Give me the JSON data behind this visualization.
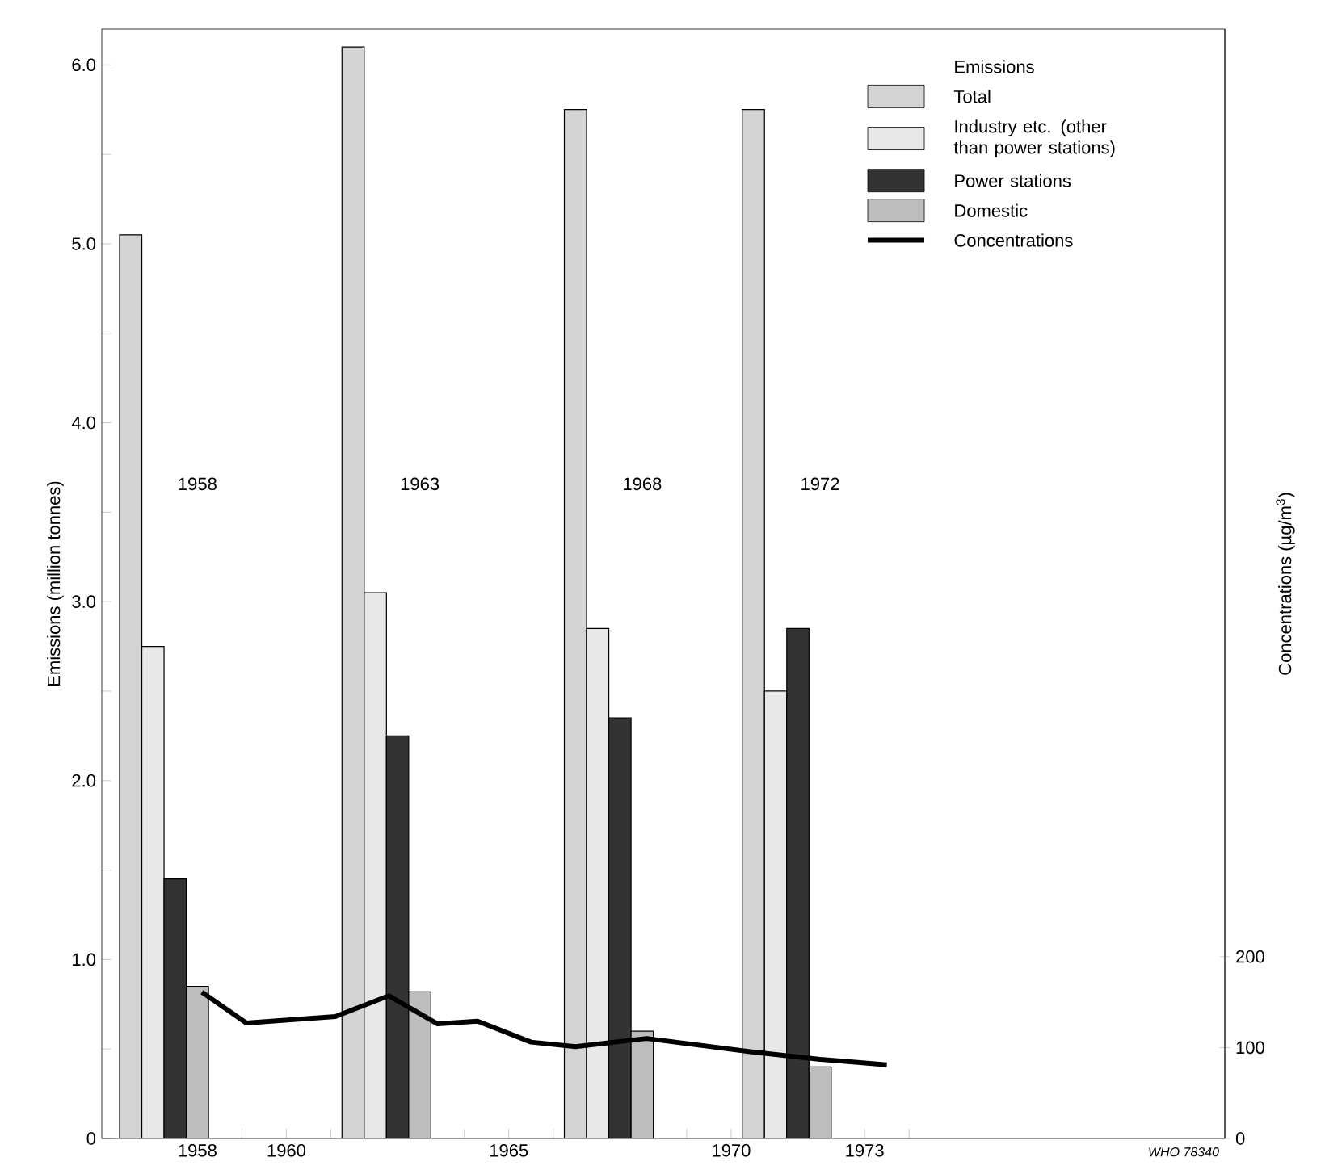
{
  "chart_data": {
    "type": "bar",
    "legend_title": "Emissions",
    "ylabel": "Emissions (million tonnes)",
    "y2label": "Concentrations (µg/m$^{3}$)",
    "x": [
      1958,
      1963,
      1968,
      1972
    ],
    "xlim": [
      1955.85,
      1981.1
    ],
    "xticks": [
      {
        "value": 1958,
        "label": "1958"
      },
      {
        "value": 1959,
        "label": null
      },
      {
        "value": 1960,
        "label": "1960"
      },
      {
        "value": 1961,
        "label": null
      },
      {
        "value": 1962,
        "label": null
      },
      {
        "value": 1963,
        "label": null
      },
      {
        "value": 1964,
        "label": null
      },
      {
        "value": 1965,
        "label": "1965"
      },
      {
        "value": 1966,
        "label": null
      },
      {
        "value": 1967,
        "label": null
      },
      {
        "value": 1968,
        "label": null
      },
      {
        "value": 1969,
        "label": null
      },
      {
        "value": 1970,
        "label": "1970"
      },
      {
        "value": 1971,
        "label": null
      },
      {
        "value": 1972,
        "label": null
      },
      {
        "value": 1973,
        "label": "1973"
      },
      {
        "value": 1974,
        "label": null
      }
    ],
    "ylim": [
      0,
      6.2
    ],
    "yticks": [
      0,
      {
        "value": 0.5,
        "label": null
      },
      {
        "value": 1,
        "label": "1.0"
      },
      {
        "value": 1.5,
        "label": null
      },
      {
        "value": 2,
        "label": "2.0"
      },
      {
        "value": 2.5,
        "label": null
      },
      {
        "value": 3,
        "label": "3.0"
      },
      {
        "value": 3.5,
        "label": null
      },
      {
        "value": 4,
        "label": "4.0"
      },
      {
        "value": 4.5,
        "label": null
      },
      {
        "value": 5,
        "label": "5.0"
      },
      {
        "value": 5.5,
        "label": null
      },
      {
        "value": 6,
        "label": "6.0"
      }
    ],
    "y2lim": [
      0,
      1220
    ],
    "y2ticks": [
      0,
      100,
      200
    ],
    "legend": "top right",
    "grid": false,
    "series": [
      {
        "name": "Total",
        "color": "#d4d4d4",
        "values": [
          5.05,
          6.1,
          5.75,
          5.75
        ]
      },
      {
        "name": "Industry etc. (other than power stations)",
        "color": "#e8e8e8",
        "values": [
          2.75,
          3.05,
          2.85,
          2.5
        ]
      },
      {
        "name": "Power stations",
        "color": "#333333",
        "values": [
          1.45,
          2.25,
          2.35,
          2.85
        ]
      },
      {
        "name": "Domestic",
        "color": "#bdbdbd",
        "values": [
          0.85,
          0.82,
          0.6,
          0.4
        ]
      },
      {
        "name": "Concentrations",
        "type": "line",
        "axis": "y2",
        "color": "#000000",
        "marker": "none",
        "line_style": "solid",
        "x": [
          1958.1,
          1959.1,
          1961.1,
          1962.3,
          1963.4,
          1964.3,
          1965.5,
          1966.5,
          1968.1,
          1970.5,
          1972,
          1973.5
        ],
        "values": [
          161,
          127,
          134,
          157,
          126,
          129,
          106,
          101,
          110,
          95,
          87,
          81
        ]
      }
    ],
    "annotations": [
      "1958",
      "1963",
      "1968",
      "1972",
      "WHO 78340"
    ]
  }
}
